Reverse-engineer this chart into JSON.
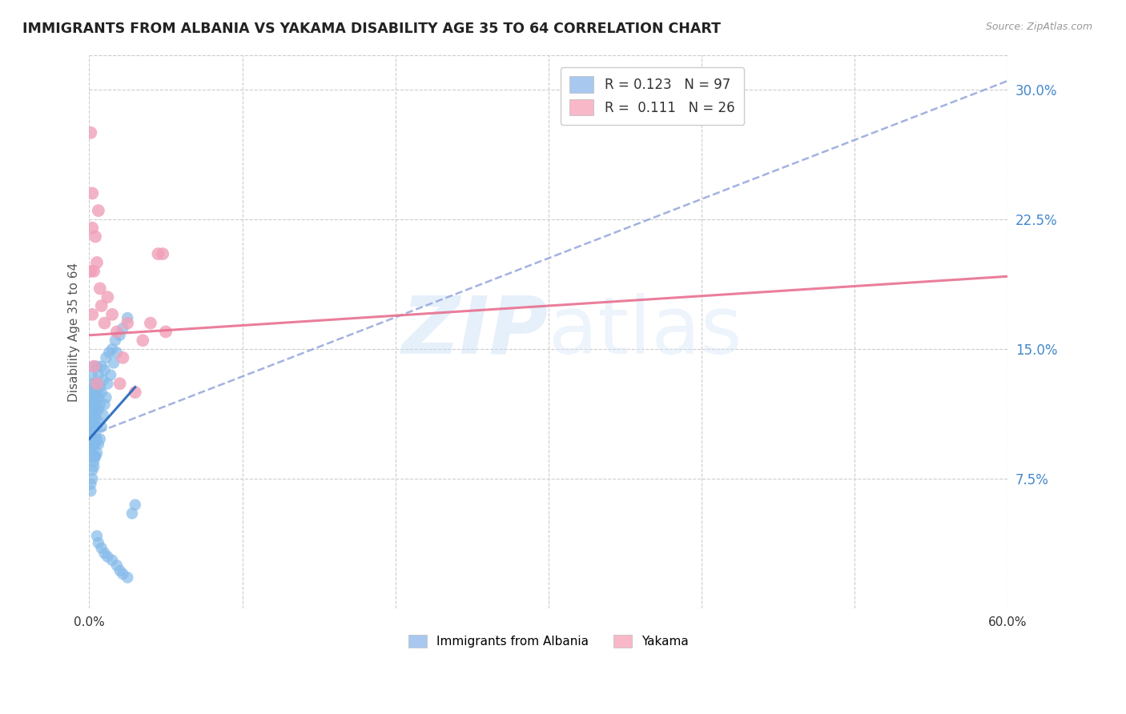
{
  "title": "IMMIGRANTS FROM ALBANIA VS YAKAMA DISABILITY AGE 35 TO 64 CORRELATION CHART",
  "source": "Source: ZipAtlas.com",
  "ylabel": "Disability Age 35 to 64",
  "xlim": [
    0.0,
    0.6
  ],
  "ylim": [
    0.0,
    0.32
  ],
  "xticks": [
    0.0,
    0.1,
    0.2,
    0.3,
    0.4,
    0.5,
    0.6
  ],
  "xticklabels": [
    "0.0%",
    "",
    "",
    "",
    "",
    "",
    "60.0%"
  ],
  "yticks_right": [
    0.0,
    0.075,
    0.15,
    0.225,
    0.3
  ],
  "ytick_labels_right": [
    "",
    "7.5%",
    "15.0%",
    "22.5%",
    "30.0%"
  ],
  "albania_scatter_x": [
    0.001,
    0.001,
    0.001,
    0.001,
    0.001,
    0.001,
    0.001,
    0.001,
    0.001,
    0.001,
    0.002,
    0.002,
    0.002,
    0.002,
    0.002,
    0.002,
    0.002,
    0.002,
    0.002,
    0.002,
    0.002,
    0.002,
    0.002,
    0.003,
    0.003,
    0.003,
    0.003,
    0.003,
    0.003,
    0.003,
    0.003,
    0.003,
    0.003,
    0.003,
    0.003,
    0.003,
    0.004,
    0.004,
    0.004,
    0.004,
    0.004,
    0.004,
    0.004,
    0.004,
    0.005,
    0.005,
    0.005,
    0.005,
    0.005,
    0.005,
    0.005,
    0.006,
    0.006,
    0.006,
    0.006,
    0.006,
    0.007,
    0.007,
    0.007,
    0.008,
    0.008,
    0.008,
    0.009,
    0.009,
    0.01,
    0.01,
    0.011,
    0.011,
    0.012,
    0.013,
    0.014,
    0.015,
    0.016,
    0.017,
    0.018,
    0.02,
    0.022,
    0.025,
    0.028,
    0.03,
    0.001,
    0.001,
    0.002,
    0.002,
    0.003,
    0.003,
    0.004,
    0.005,
    0.006,
    0.008,
    0.01,
    0.012,
    0.015,
    0.018,
    0.02,
    0.022,
    0.025
  ],
  "albania_scatter_y": [
    0.1,
    0.108,
    0.095,
    0.115,
    0.088,
    0.12,
    0.103,
    0.092,
    0.11,
    0.098,
    0.118,
    0.105,
    0.125,
    0.095,
    0.112,
    0.13,
    0.09,
    0.108,
    0.122,
    0.098,
    0.115,
    0.088,
    0.135,
    0.12,
    0.105,
    0.115,
    0.095,
    0.128,
    0.108,
    0.14,
    0.098,
    0.118,
    0.088,
    0.105,
    0.125,
    0.095,
    0.122,
    0.112,
    0.13,
    0.1,
    0.088,
    0.118,
    0.095,
    0.11,
    0.125,
    0.105,
    0.14,
    0.09,
    0.115,
    0.098,
    0.13,
    0.122,
    0.108,
    0.095,
    0.135,
    0.115,
    0.128,
    0.098,
    0.118,
    0.14,
    0.105,
    0.125,
    0.112,
    0.132,
    0.118,
    0.138,
    0.122,
    0.145,
    0.13,
    0.148,
    0.135,
    0.15,
    0.142,
    0.155,
    0.148,
    0.158,
    0.162,
    0.168,
    0.055,
    0.06,
    0.068,
    0.072,
    0.075,
    0.08,
    0.082,
    0.085,
    0.088,
    0.042,
    0.038,
    0.035,
    0.032,
    0.03,
    0.028,
    0.025,
    0.022,
    0.02,
    0.018
  ],
  "yakama_scatter_x": [
    0.001,
    0.001,
    0.002,
    0.002,
    0.003,
    0.004,
    0.005,
    0.006,
    0.007,
    0.008,
    0.01,
    0.012,
    0.015,
    0.018,
    0.02,
    0.022,
    0.025,
    0.03,
    0.035,
    0.04,
    0.045,
    0.05,
    0.002,
    0.003,
    0.005,
    0.048
  ],
  "yakama_scatter_y": [
    0.275,
    0.195,
    0.22,
    0.24,
    0.195,
    0.215,
    0.2,
    0.23,
    0.185,
    0.175,
    0.165,
    0.18,
    0.17,
    0.16,
    0.13,
    0.145,
    0.165,
    0.125,
    0.155,
    0.165,
    0.205,
    0.16,
    0.17,
    0.14,
    0.13,
    0.205
  ],
  "albania_trend_x": [
    0.0,
    0.03
  ],
  "albania_trend_y": [
    0.098,
    0.128
  ],
  "yakama_trend_x": [
    0.0,
    0.6
  ],
  "yakama_trend_y": [
    0.158,
    0.192
  ],
  "dashed_trend_x": [
    0.0,
    0.6
  ],
  "dashed_trend_y": [
    0.1,
    0.305
  ],
  "scatter_color_albania": "#85bbea",
  "scatter_color_yakama": "#f0a0b8",
  "trend_color_albania": "#2266bb",
  "trend_color_yakama": "#e87090",
  "dashed_color": "#99aadd",
  "watermark_zip": "ZIP",
  "watermark_atlas": "atlas",
  "background_color": "#ffffff"
}
